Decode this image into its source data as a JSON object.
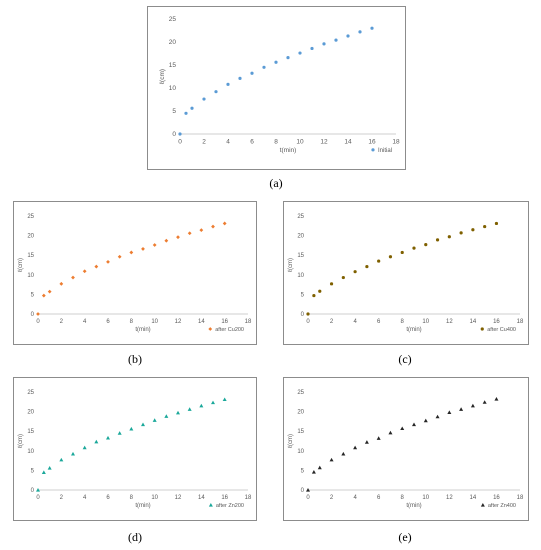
{
  "captions": [
    "(a)",
    "(b)",
    "(c)",
    "(d)",
    "(e)"
  ],
  "chart_data": [
    {
      "type": "scatter",
      "xlabel": "t(min)",
      "ylabel": "ℓ(cm)",
      "xlim": [
        0,
        18
      ],
      "ylim": [
        0,
        25
      ],
      "xticks": [
        "0",
        "2",
        "4",
        "6",
        "8",
        "10",
        "12",
        "14",
        "16",
        "18"
      ],
      "yticks": [
        "0",
        "5",
        "10",
        "15",
        "20",
        "25"
      ],
      "grid": false,
      "legend_position": "bottom-right",
      "marker": "circle",
      "color": "#5b9bd5",
      "series": [
        {
          "name": "Initial",
          "x": [
            0,
            0.5,
            1,
            2,
            3,
            4,
            5,
            6,
            7,
            8,
            9,
            10,
            11,
            12,
            13,
            14,
            15,
            16
          ],
          "y": [
            0,
            4.5,
            5.6,
            7.6,
            9.2,
            10.8,
            12.1,
            13.2,
            14.5,
            15.6,
            16.6,
            17.6,
            18.6,
            19.6,
            20.4,
            21.3,
            22.2,
            23.0
          ]
        }
      ]
    },
    {
      "type": "scatter",
      "xlabel": "t(min)",
      "ylabel": "ℓ(cm)",
      "xlim": [
        0,
        18
      ],
      "ylim": [
        0,
        25
      ],
      "xticks": [
        "0",
        "2",
        "4",
        "6",
        "8",
        "10",
        "12",
        "14",
        "16",
        "18"
      ],
      "yticks": [
        "0",
        "5",
        "10",
        "15",
        "20",
        "25"
      ],
      "grid": false,
      "legend_position": "bottom-right",
      "marker": "diamond",
      "color": "#ed7d31",
      "series": [
        {
          "name": "after Cu200",
          "x": [
            0,
            0.5,
            1,
            2,
            3,
            4,
            5,
            6,
            7,
            8,
            9,
            10,
            11,
            12,
            13,
            14,
            15,
            16
          ],
          "y": [
            0,
            4.7,
            5.7,
            7.7,
            9.3,
            10.9,
            12.1,
            13.3,
            14.6,
            15.7,
            16.6,
            17.6,
            18.7,
            19.6,
            20.6,
            21.4,
            22.3,
            23.1
          ]
        }
      ]
    },
    {
      "type": "scatter",
      "xlabel": "t(min)",
      "ylabel": "ℓ(cm)",
      "xlim": [
        0,
        18
      ],
      "ylim": [
        0,
        25
      ],
      "xticks": [
        "0",
        "2",
        "4",
        "6",
        "8",
        "10",
        "12",
        "14",
        "16",
        "18"
      ],
      "yticks": [
        "0",
        "5",
        "10",
        "15",
        "20",
        "25"
      ],
      "grid": false,
      "legend_position": "bottom-right",
      "marker": "circle",
      "color": "#7f6000",
      "series": [
        {
          "name": "after Cu400",
          "x": [
            0,
            0.5,
            1,
            2,
            3,
            4,
            5,
            6,
            7,
            8,
            9,
            10,
            11,
            12,
            13,
            14,
            15,
            16
          ],
          "y": [
            0,
            4.7,
            5.8,
            7.7,
            9.3,
            10.8,
            12.1,
            13.5,
            14.6,
            15.7,
            16.8,
            17.7,
            18.9,
            19.7,
            20.7,
            21.5,
            22.3,
            23.1
          ]
        }
      ]
    },
    {
      "type": "scatter",
      "xlabel": "t(min)",
      "ylabel": "ℓ(cm)",
      "xlim": [
        0,
        18
      ],
      "ylim": [
        0,
        25
      ],
      "xticks": [
        "0",
        "2",
        "4",
        "6",
        "8",
        "10",
        "12",
        "14",
        "16",
        "18"
      ],
      "yticks": [
        "0",
        "5",
        "10",
        "15",
        "20",
        "25"
      ],
      "grid": false,
      "legend_position": "bottom-right",
      "marker": "triangle",
      "color": "#1aa89a",
      "series": [
        {
          "name": "after Zn200",
          "x": [
            0,
            0.5,
            1,
            2,
            3,
            4,
            5,
            6,
            7,
            8,
            9,
            10,
            11,
            12,
            13,
            14,
            15,
            16
          ],
          "y": [
            0,
            4.5,
            5.6,
            7.7,
            9.2,
            10.8,
            12.3,
            13.3,
            14.5,
            15.6,
            16.7,
            17.8,
            18.8,
            19.7,
            20.6,
            21.5,
            22.3,
            23.1
          ]
        }
      ]
    },
    {
      "type": "scatter",
      "xlabel": "t(min)",
      "ylabel": "ℓ(cm)",
      "xlim": [
        0,
        18
      ],
      "ylim": [
        0,
        25
      ],
      "xticks": [
        "0",
        "2",
        "4",
        "6",
        "8",
        "10",
        "12",
        "14",
        "16",
        "18"
      ],
      "yticks": [
        "0",
        "5",
        "10",
        "15",
        "20",
        "25"
      ],
      "grid": false,
      "legend_position": "bottom-right",
      "marker": "triangle",
      "color": "#262626",
      "series": [
        {
          "name": "after Zn400",
          "x": [
            0,
            0.5,
            1,
            2,
            3,
            4,
            5,
            6,
            7,
            8,
            9,
            10,
            11,
            12,
            13,
            14,
            15,
            16
          ],
          "y": [
            0,
            4.6,
            5.7,
            7.7,
            9.2,
            10.8,
            12.2,
            13.2,
            14.6,
            15.7,
            16.7,
            17.7,
            18.7,
            19.8,
            20.6,
            21.5,
            22.4,
            23.2
          ]
        }
      ]
    }
  ]
}
